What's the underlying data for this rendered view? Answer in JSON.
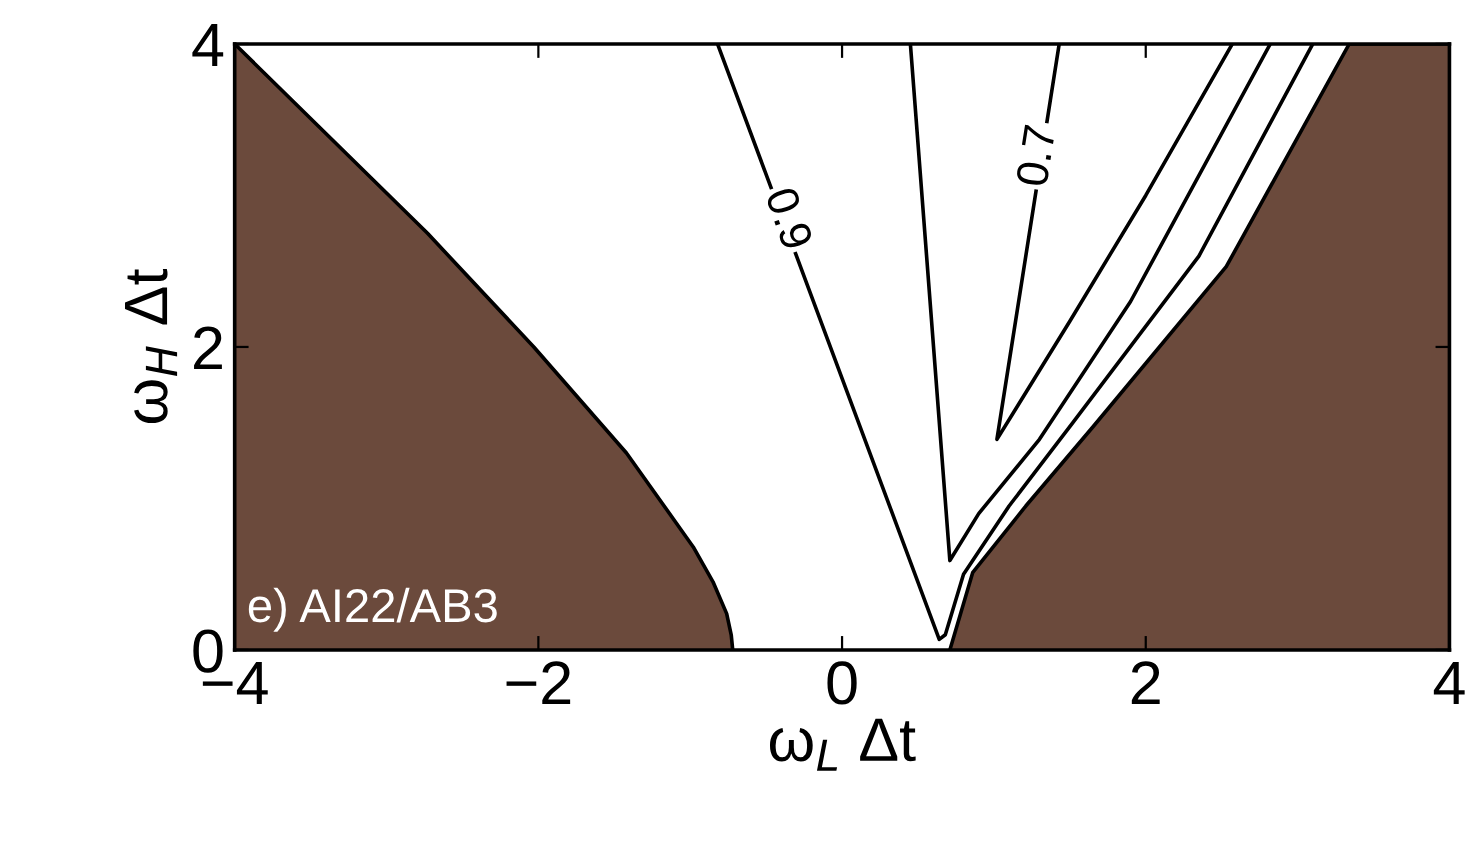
{
  "chart_data": {
    "type": "area",
    "xlabel": "ω$_{L}$ Δt",
    "ylabel": "ω$_{H}$ Δt",
    "xlim": [
      -4,
      4
    ],
    "ylim": [
      0,
      4
    ],
    "xticks": [
      {
        "value": -4,
        "label": "−4"
      },
      {
        "value": -2,
        "label": "−2"
      },
      0,
      2,
      4
    ],
    "yticks": [
      0,
      2,
      4
    ],
    "grid": false,
    "legend": false,
    "series": [
      {
        "color": "#6b4a3c",
        "x": [
          -4,
          -2.73,
          -2.03,
          -1.42,
          -0.98,
          -0.85,
          -0.76,
          -0.73,
          -0.72
        ],
        "values": [
          4,
          2.75,
          2.0,
          1.3,
          0.68,
          0.45,
          0.24,
          0.1,
          0
        ]
      },
      {
        "color": "#6b4a3c",
        "x": [
          0.71,
          0.86,
          1.21,
          1.65,
          2.53,
          3.34,
          4
        ],
        "values": [
          0,
          0.51,
          0.95,
          1.47,
          2.53,
          4,
          4
        ]
      },
      {
        "type": "line",
        "color": "#000000",
        "x": [
          -0.82,
          0.64,
          0.68,
          0.8,
          1.1,
          1.52,
          2.35,
          3.1
        ],
        "values": [
          4,
          0.07,
          0.1,
          0.5,
          0.95,
          1.5,
          2.6,
          4
        ]
      },
      {
        "type": "line",
        "color": "#000000",
        "x": [
          0.45,
          0.71,
          0.9,
          1.3,
          1.9,
          2.82
        ],
        "values": [
          4,
          0.59,
          0.9,
          1.39,
          2.3,
          4
        ]
      },
      {
        "type": "line",
        "color": "#000000",
        "x": [
          1.43,
          1.02,
          1.5,
          2.0,
          2.57
        ],
        "values": [
          4,
          1.39,
          2.17,
          3.0,
          4
        ]
      }
    ],
    "annotations": [
      {
        "text": "0.9",
        "x": -0.37,
        "y": 2.84
      },
      {
        "text": "0.7",
        "x": 1.3,
        "y": 3.26
      },
      "e) AI22/AB3"
    ]
  }
}
